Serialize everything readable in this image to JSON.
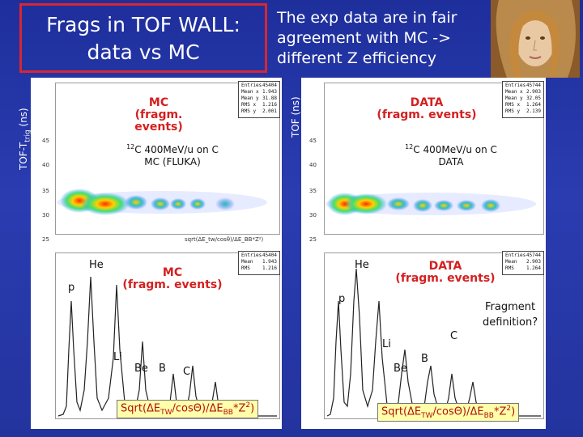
{
  "slide": {
    "title_line1": "Frags in TOF WALL:",
    "title_line2": "data vs MC",
    "subtitle_line1": "The exp data are in fair",
    "subtitle_line2": "agreement with MC ->",
    "subtitle_line3": "different Z efficiency",
    "yaxis_left": "TOF-T",
    "yaxis_left_sub": "trig",
    "yaxis_left_unit": " (ns)",
    "yaxis_right": "TOF (ns)"
  },
  "mc_2d": {
    "label_line1": "MC",
    "label_line2": "(fragm. events)",
    "beam": "C 400MeV/u on C",
    "beam_sup": "12",
    "beam_line2": "MC (FLUKA)",
    "stats": [
      [
        "Entries",
        "45404"
      ],
      [
        "Mean x",
        "1.943"
      ],
      [
        "Mean y",
        "31.88"
      ],
      [
        "RMS x",
        "1.216"
      ],
      [
        "RMS y",
        "2.001"
      ]
    ],
    "xaxis": "sqrt(ΔE_tw/cosθ)/ΔE_BB*Z²)",
    "yticks": [
      "45",
      "40",
      "35",
      "30",
      "25"
    ]
  },
  "data_2d": {
    "label_line1": "DATA",
    "label_line2": "(fragm. events)",
    "beam": "C 400MeV/u on C",
    "beam_sup": "12",
    "beam_line2": "DATA",
    "stats": [
      [
        "Entries",
        "45744"
      ],
      [
        "Mean x",
        "2.903"
      ],
      [
        "Mean y",
        "32.05"
      ],
      [
        "RMS x",
        "1.264"
      ],
      [
        "RMS y",
        "2.139"
      ]
    ],
    "yticks": [
      "45",
      "40",
      "35",
      "30",
      "25"
    ]
  },
  "mc_1d": {
    "label_line1": "MC",
    "label_line2": "(fragm. events)",
    "stats": [
      [
        "Entries",
        "45404"
      ],
      [
        "Mean",
        "1.943"
      ],
      [
        "RMS",
        "1.216"
      ]
    ],
    "peaks": [
      "He",
      "p",
      "Li",
      "Be",
      "B",
      "C"
    ],
    "formula": "Sqrt(ΔETW/cosΘ)/ΔEBB*Z2)"
  },
  "data_1d": {
    "label_line1": "DATA",
    "label_line2": "(fragm. events)",
    "stats": [
      [
        "Entries",
        "45744"
      ],
      [
        "Mean",
        "2.903"
      ],
      [
        "RMS",
        "1.264"
      ]
    ],
    "peaks": [
      "He",
      "p",
      "Li",
      "Be",
      "B",
      "C"
    ],
    "annotation_line1": "Fragment",
    "annotation_line2": "definition?",
    "formula": "Sqrt(ΔETW/cosΘ)/ΔEBB*Z2)"
  },
  "colors": {
    "background": "#2236a8",
    "title_border": "#d9262f",
    "label_red": "#d42020",
    "formula_bg": "#ffffaa"
  }
}
